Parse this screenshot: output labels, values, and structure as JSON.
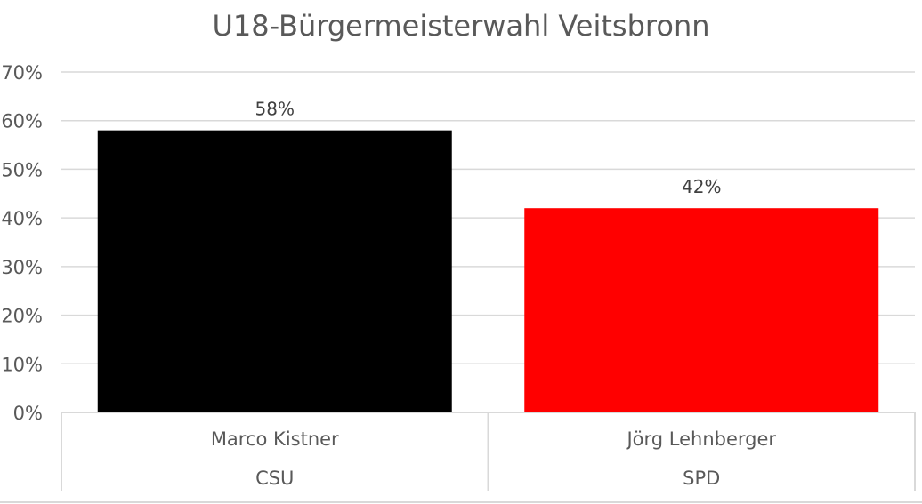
{
  "chart_data": {
    "type": "bar",
    "title": "U18-Bürgermeisterwahl Veitsbronn",
    "xlabel": "",
    "ylabel": "",
    "ylim": [
      0,
      70
    ],
    "y_tick_labels": [
      "0%",
      "10%",
      "20%",
      "30%",
      "40%",
      "50%",
      "60%",
      "70%"
    ],
    "grid": true,
    "categories": [
      "Marco Kistner",
      "Jörg Lehnberger"
    ],
    "groups": [
      "CSU",
      "SPD"
    ],
    "values": [
      58,
      42
    ],
    "data_labels": [
      "58%",
      "42%"
    ],
    "colors": [
      "#000000",
      "#ff0000"
    ],
    "gridline_color": "#d9d9d9",
    "text_color": "#595959"
  }
}
